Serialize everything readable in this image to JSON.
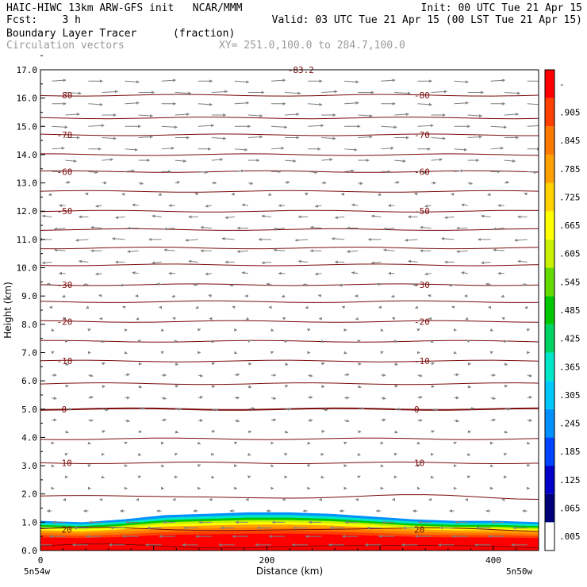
{
  "header": {
    "line1_left": "HAIC-HIWC 13km ARW-GFS init   NCAR/MMM",
    "line1_right": "Init: 00 UTC Tue 21 Apr 15",
    "line2_left": "Fcst:    3 h",
    "line2_right": "Valid: 03 UTC Tue 21 Apr 15 (00 LST Tue 21 Apr 15)",
    "field1_name": "Boundary Layer Tracer",
    "field1_units": "(fraction)",
    "field2_name": "Circulation vectors",
    "xy_text": "XY= 251.0,100.0 to 284.7,100.0"
  },
  "chart_data": {
    "type": "heatmap",
    "xlabel": "Distance (km)",
    "ylabel": "Height (km)",
    "xlim": [
      0,
      440
    ],
    "ylim": [
      0,
      17
    ],
    "x_ticks": [
      "0",
      "200",
      "400"
    ],
    "x_tick_values": [
      0,
      200,
      400
    ],
    "x_end_labels": {
      "left": "5n54w",
      "right": "5n50w"
    },
    "y_ticks": [
      "0.0",
      "1.0",
      "2.0",
      "3.0",
      "4.0",
      "5.0",
      "6.0",
      "7.0",
      "8.0",
      "9.0",
      "10.0",
      "11.0",
      "12.0",
      "13.0",
      "14.0",
      "15.0",
      "16.0",
      "17.0"
    ],
    "tracer_fill": {
      "colorbar_labels": [
        ".005",
        ".065",
        ".125",
        ".185",
        ".245",
        ".305",
        ".365",
        ".425",
        ".485",
        ".545",
        ".605",
        ".665",
        ".725",
        ".785",
        ".845",
        ".905",
        "-"
      ],
      "colors": [
        "#ffffff",
        "#00007a",
        "#0000c8",
        "#0044ff",
        "#0090ff",
        "#00c8ff",
        "#00e6c8",
        "#00d264",
        "#00c800",
        "#64dc00",
        "#c8f000",
        "#ffff00",
        "#ffd200",
        "#ffa000",
        "#ff7800",
        "#ff4000",
        "#ff0000"
      ],
      "top_height_km": [
        1.05,
        1.0,
        1.1,
        1.25,
        1.3,
        1.35,
        1.35,
        1.3,
        1.2,
        1.1,
        1.05,
        1.05,
        1.0
      ]
    },
    "temperature_contours": {
      "levels": [
        20,
        10,
        0,
        -10,
        -20,
        -30,
        -50,
        -60,
        -70,
        -80
      ],
      "heights_km": [
        0.75,
        3.1,
        5.0,
        6.7,
        8.1,
        9.4,
        12.0,
        13.4,
        14.7,
        16.1
      ],
      "labels": [
        "20",
        "10",
        "0",
        "-10",
        "-20",
        "-30",
        "-50",
        "-60",
        "-70",
        "-80"
      ],
      "top_label": "-83.2",
      "extra_line_heights_km": [
        0.15,
        1.9,
        3.95,
        5.9,
        7.4,
        8.8,
        10.1,
        10.7,
        11.35,
        12.7,
        14.0,
        15.3
      ]
    },
    "wind_vectors": {
      "rows_km": [
        0.2,
        0.5,
        0.8,
        1.0,
        1.4,
        1.8,
        2.2,
        2.6,
        3.0,
        3.4,
        3.8,
        4.2,
        4.6,
        5.0,
        5.4,
        5.8,
        6.2,
        6.6,
        7.0,
        7.4,
        7.8,
        8.2,
        8.6,
        9.0,
        9.4,
        9.8,
        10.2,
        10.6,
        11.0,
        11.4,
        11.8,
        12.2,
        12.6,
        13.0,
        13.4,
        13.8,
        14.2,
        14.6,
        15.0,
        15.4,
        15.8,
        16.2,
        16.6
      ],
      "u_by_row": [
        -1.0,
        -1.0,
        -0.9,
        -0.8,
        -0.3,
        -0.1,
        0.0,
        0.0,
        0.0,
        0.0,
        0.1,
        0.2,
        0.3,
        0.4,
        0.3,
        0.2,
        0.3,
        0.2,
        0.1,
        0.1,
        0.0,
        -0.1,
        -0.1,
        -0.2,
        -0.3,
        -0.4,
        -0.6,
        -0.7,
        -0.8,
        -0.7,
        -0.6,
        -0.4,
        -0.2,
        0.3,
        0.6,
        0.7,
        0.8,
        0.9,
        1.0,
        0.9,
        0.9,
        1.0,
        0.9
      ],
      "color": "#808080"
    },
    "grid": false
  }
}
